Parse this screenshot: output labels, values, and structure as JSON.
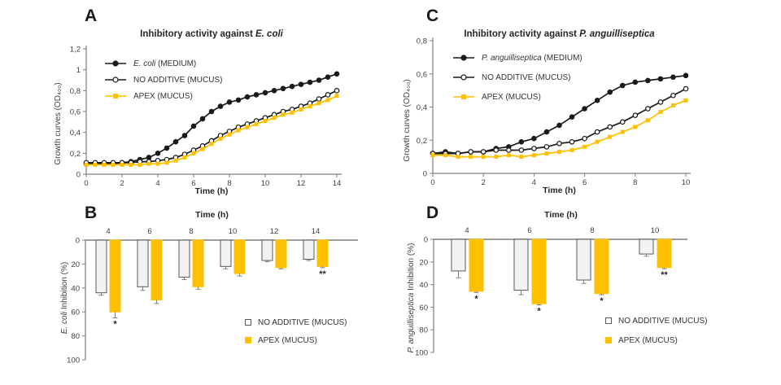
{
  "figure": {
    "background": "#ffffff"
  },
  "colors": {
    "black_series": "#1a1a1a",
    "apex_yellow": "#FFC000",
    "bar_gray_fill": "#F2F2F2",
    "bar_border": "#595959",
    "axis_gray": "#7f7f7f",
    "text_dark": "#404040"
  },
  "chart_data": [
    {
      "panel_label": "A",
      "type": "line",
      "title_prefix": "Inhibitory activity against ",
      "title_em": "E. coli",
      "xlabel": "Time (h)",
      "ylabel": "Growth curves (OD₄₀₀)",
      "xlim": [
        0,
        14
      ],
      "ylim": [
        0,
        1.2
      ],
      "xticks": [
        0,
        2,
        4,
        6,
        8,
        10,
        12,
        14
      ],
      "ytick_values": [
        0,
        0.2,
        0.4,
        0.6,
        0.8,
        1,
        1.2
      ],
      "ytick_labels": [
        "0",
        "0,2",
        "0,4",
        "0,6",
        "0,8",
        "1",
        "1,2"
      ],
      "x": [
        0,
        0.5,
        1,
        1.5,
        2,
        2.5,
        3,
        3.5,
        4,
        4.5,
        5,
        5.5,
        6,
        6.5,
        7,
        7.5,
        8,
        8.5,
        9,
        9.5,
        10,
        10.5,
        11,
        11.5,
        12,
        12.5,
        13,
        13.5,
        14
      ],
      "series": [
        {
          "name_em": "E. coli",
          "name_rest": " (MEDIUM)",
          "color": "#1a1a1a",
          "marker": "circle",
          "marker_fill": "#1a1a1a",
          "values": [
            0.1,
            0.1,
            0.1,
            0.1,
            0.11,
            0.12,
            0.14,
            0.16,
            0.2,
            0.25,
            0.31,
            0.37,
            0.46,
            0.53,
            0.6,
            0.65,
            0.69,
            0.71,
            0.74,
            0.76,
            0.78,
            0.8,
            0.82,
            0.84,
            0.86,
            0.88,
            0.9,
            0.93,
            0.96
          ]
        },
        {
          "name_em": "",
          "name_rest": "NO ADDITIVE (MUCUS)",
          "color": "#1a1a1a",
          "marker": "circle",
          "marker_fill": "#ffffff",
          "values": [
            0.11,
            0.11,
            0.11,
            0.11,
            0.11,
            0.11,
            0.12,
            0.12,
            0.13,
            0.14,
            0.16,
            0.19,
            0.23,
            0.27,
            0.32,
            0.37,
            0.41,
            0.45,
            0.48,
            0.51,
            0.54,
            0.57,
            0.6,
            0.62,
            0.65,
            0.68,
            0.72,
            0.76,
            0.8
          ]
        },
        {
          "name_em": "",
          "name_rest": "APEX (MUCUS)",
          "color": "#FFC000",
          "marker": "square",
          "marker_fill": "#FFC000",
          "values": [
            0.09,
            0.09,
            0.09,
            0.09,
            0.09,
            0.09,
            0.09,
            0.1,
            0.1,
            0.11,
            0.13,
            0.16,
            0.2,
            0.24,
            0.29,
            0.34,
            0.38,
            0.42,
            0.45,
            0.48,
            0.51,
            0.54,
            0.57,
            0.59,
            0.62,
            0.65,
            0.68,
            0.71,
            0.75
          ]
        }
      ]
    },
    {
      "panel_label": "B",
      "type": "bar",
      "xlabel": "Time (h)",
      "ylabel_em": "E. coli",
      "ylabel_rest": " Inhibition (%)",
      "categories": [
        4,
        6,
        8,
        10,
        12,
        14
      ],
      "ylim": [
        0,
        100
      ],
      "yticks": [
        0,
        20,
        40,
        60,
        80,
        100
      ],
      "axis_inverted": true,
      "series": [
        {
          "name": "NO ADDITIVE (MUCUS)",
          "fill": "#F2F2F2",
          "stroke": "#595959",
          "values": [
            44,
            39,
            31,
            22,
            17,
            16
          ],
          "errors": [
            2,
            3,
            2,
            2,
            1,
            1
          ]
        },
        {
          "name": "APEX (MUCUS)",
          "fill": "#FFC000",
          "stroke": "#FFC000",
          "values": [
            60,
            50,
            39,
            28,
            23,
            22
          ],
          "errors": [
            5,
            3,
            2,
            2,
            1,
            1
          ]
        }
      ],
      "significance": [
        {
          "category": 4,
          "series": "APEX (MUCUS)",
          "mark": "*"
        },
        {
          "category": 14,
          "series": "APEX (MUCUS)",
          "mark": "**"
        }
      ]
    },
    {
      "panel_label": "C",
      "type": "line",
      "title_prefix": "Inhibitory activity against ",
      "title_em": "P. anguilliseptica",
      "xlabel": "Time (h)",
      "ylabel": "Growth curves (OD₄₀₀)",
      "xlim": [
        0,
        10
      ],
      "ylim": [
        0,
        0.8
      ],
      "xticks": [
        0,
        2,
        4,
        6,
        8,
        10
      ],
      "ytick_values": [
        0,
        0.2,
        0.4,
        0.6,
        0.8
      ],
      "ytick_labels": [
        "0",
        "0,2",
        "0,4",
        "0,6",
        "0,8"
      ],
      "x": [
        0,
        0.5,
        1,
        1.5,
        2,
        2.5,
        3,
        3.5,
        4,
        4.5,
        5,
        5.5,
        6,
        6.5,
        7,
        7.5,
        8,
        8.5,
        9,
        9.5,
        10
      ],
      "series": [
        {
          "name_em": "P. anguilliseptica",
          "name_rest": " (MEDIUM)",
          "color": "#1a1a1a",
          "marker": "circle",
          "marker_fill": "#1a1a1a",
          "values": [
            0.12,
            0.13,
            0.12,
            0.13,
            0.13,
            0.15,
            0.16,
            0.19,
            0.21,
            0.25,
            0.29,
            0.34,
            0.39,
            0.44,
            0.49,
            0.53,
            0.55,
            0.56,
            0.57,
            0.58,
            0.59
          ]
        },
        {
          "name_em": "",
          "name_rest": "NO ADDITIVE (MUCUS)",
          "color": "#1a1a1a",
          "marker": "circle",
          "marker_fill": "#ffffff",
          "values": [
            0.12,
            0.12,
            0.12,
            0.13,
            0.13,
            0.14,
            0.14,
            0.14,
            0.15,
            0.16,
            0.18,
            0.19,
            0.21,
            0.25,
            0.28,
            0.31,
            0.35,
            0.39,
            0.43,
            0.47,
            0.51
          ]
        },
        {
          "name_em": "",
          "name_rest": "APEX (MUCUS)",
          "color": "#FFC000",
          "marker": "square",
          "marker_fill": "#FFC000",
          "values": [
            0.11,
            0.11,
            0.1,
            0.1,
            0.1,
            0.1,
            0.11,
            0.1,
            0.11,
            0.12,
            0.13,
            0.14,
            0.16,
            0.19,
            0.22,
            0.25,
            0.28,
            0.32,
            0.37,
            0.41,
            0.44
          ]
        }
      ]
    },
    {
      "panel_label": "D",
      "type": "bar",
      "xlabel": "Time (h)",
      "ylabel_em": "P. anguilliseptica",
      "ylabel_rest": " Inhibition (%)",
      "categories": [
        4,
        6,
        8,
        10
      ],
      "ylim": [
        0,
        100
      ],
      "yticks": [
        0,
        20,
        40,
        60,
        80,
        100
      ],
      "axis_inverted": true,
      "series": [
        {
          "name": "NO ADDITIVE (MUCUS)",
          "fill": "#F2F2F2",
          "stroke": "#595959",
          "values": [
            28,
            45,
            36,
            13
          ],
          "errors": [
            6,
            4,
            3,
            2
          ]
        },
        {
          "name": "APEX (MUCUS)",
          "fill": "#FFC000",
          "stroke": "#FFC000",
          "values": [
            46,
            57,
            48,
            25
          ],
          "errors": [
            1,
            1,
            1,
            1
          ]
        }
      ],
      "significance": [
        {
          "category": 4,
          "series": "APEX (MUCUS)",
          "mark": "*"
        },
        {
          "category": 6,
          "series": "APEX (MUCUS)",
          "mark": "*"
        },
        {
          "category": 8,
          "series": "APEX (MUCUS)",
          "mark": "*"
        },
        {
          "category": 10,
          "series": "APEX (MUCUS)",
          "mark": "**"
        }
      ]
    }
  ]
}
